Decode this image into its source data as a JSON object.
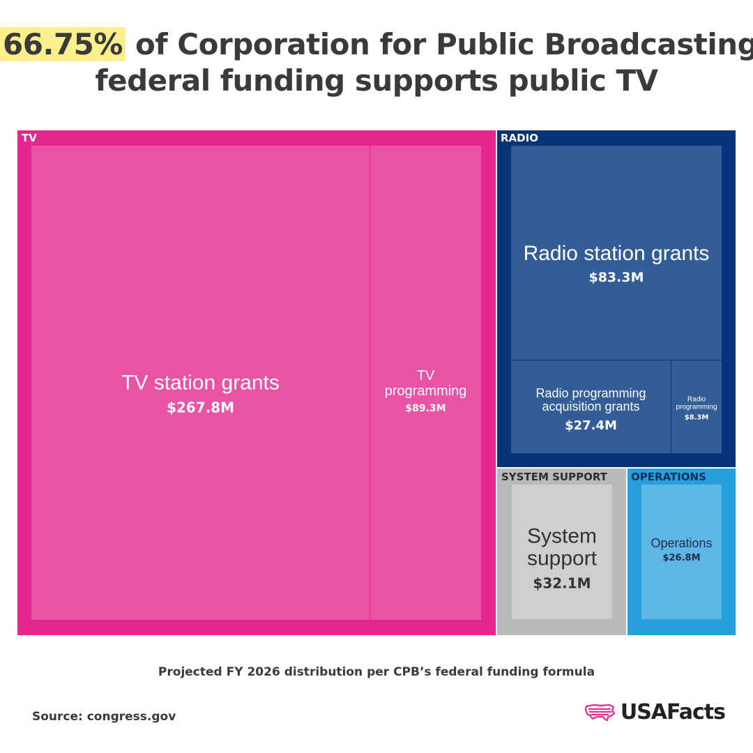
{
  "title": {
    "highlight": "66.75%",
    "line1_rest": " of Corporation for Public Broadcasting’s",
    "line2": "federal funding supports public TV"
  },
  "subtitle": "Projected FY 2026 distribution per CPB’s federal funding formula",
  "source": "Source: congress.gov",
  "logo_text": "USAFacts",
  "colors": {
    "tv_group": "#e6258f",
    "tv_leaf": "#ea52a4",
    "radio_group": "#073378",
    "radio_leaf": "#325d96",
    "system_group": "#b8b9b9",
    "system_leaf": "#cfcfcf",
    "ops_group": "#269fdf",
    "ops_leaf": "#5db6e6",
    "highlight": "#fdf08c"
  },
  "chart_data": {
    "type": "treemap",
    "groups": [
      {
        "name": "TV",
        "items": [
          {
            "label": "TV station grants",
            "value_label": "$267.8M",
            "value": 267.8
          },
          {
            "label": "TV programming",
            "value_label": "$89.3M",
            "value": 89.3
          }
        ]
      },
      {
        "name": "RADIO",
        "items": [
          {
            "label": "Radio station grants",
            "value_label": "$83.3M",
            "value": 83.3
          },
          {
            "label": "Radio programming acquisition grants",
            "value_label": "$27.4M",
            "value": 27.4
          },
          {
            "label": "Radio programming",
            "value_label": "$8.3M",
            "value": 8.3
          }
        ]
      },
      {
        "name": "SYSTEM SUPPORT",
        "items": [
          {
            "label": "System support",
            "value_label": "$32.1M",
            "value": 32.1
          }
        ]
      },
      {
        "name": "OPERATIONS",
        "items": [
          {
            "label": "Operations",
            "value_label": "$26.8M",
            "value": 26.8
          }
        ]
      }
    ]
  }
}
